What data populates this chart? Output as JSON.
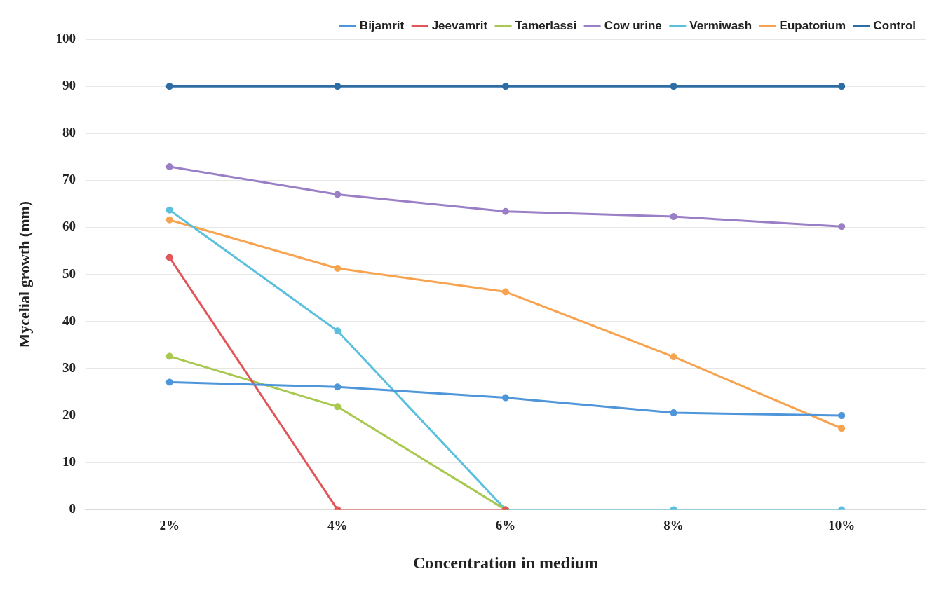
{
  "chart_data": {
    "type": "line",
    "xlabel": "Concentration in medium",
    "ylabel": "Mycelial growth (mm)",
    "categories": [
      "2%",
      "4%",
      "6%",
      "8%",
      "10%"
    ],
    "series": [
      {
        "name": "Bijamrit",
        "color": "#4e95d9",
        "values": [
          27.1,
          26.1,
          23.8,
          20.6,
          20.0
        ]
      },
      {
        "name": "Jeevamrit",
        "color": "#e15759",
        "values": [
          53.6,
          0,
          0,
          null,
          null
        ]
      },
      {
        "name": "Tamerlassi",
        "color": "#a9c84f",
        "values": [
          32.6,
          21.9,
          0,
          null,
          null
        ]
      },
      {
        "name": "Cow urine",
        "color": "#9a7fc6",
        "values": [
          72.9,
          67.0,
          63.4,
          62.3,
          60.2
        ]
      },
      {
        "name": "Vermiwash",
        "color": "#5bc0de",
        "values": [
          63.7,
          38.0,
          0,
          0,
          0
        ]
      },
      {
        "name": "Eupatorium",
        "color": "#f7a350",
        "values": [
          61.6,
          51.3,
          46.3,
          32.5,
          17.3
        ]
      },
      {
        "name": "Control",
        "color": "#2e6da4",
        "values": [
          90,
          90,
          90,
          90,
          90
        ]
      }
    ],
    "ylim": [
      0,
      100
    ],
    "yticks": [
      0,
      10,
      20,
      30,
      40,
      50,
      60,
      70,
      80,
      90,
      100
    ],
    "grid": "y",
    "legend": "top",
    "marker": "circle",
    "line_style": "solid"
  }
}
